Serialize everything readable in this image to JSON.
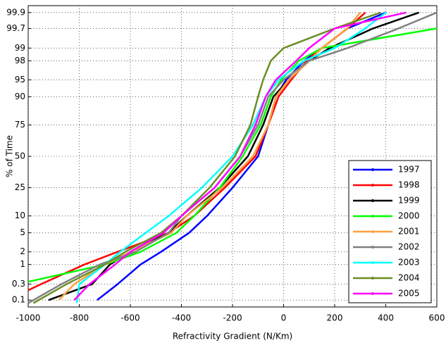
{
  "chart_data": {
    "type": "line",
    "y_scale": "probability",
    "grid": true,
    "legend": "lower right",
    "xlabel": "Refractivity Gradient (N/Km)",
    "ylabel": "% of Time",
    "xlim": [
      -1000,
      600
    ],
    "xticks": [
      -1000,
      -800,
      -600,
      -400,
      -200,
      0,
      200,
      400,
      600
    ],
    "ylim": [
      0.06,
      99.94
    ],
    "yticks": [
      0.1,
      0.3,
      1,
      2,
      5,
      10,
      25,
      50,
      75,
      90,
      95,
      98,
      99,
      99.7,
      99.9
    ],
    "series": [
      {
        "name": "1997",
        "color": "#0000ff",
        "x": [
          -730,
          -650,
          -560,
          -480,
          -370,
          -300,
          -200,
          -100,
          -60,
          -30,
          10,
          80,
          150,
          250,
          400
        ],
        "y": [
          0.1,
          0.3,
          1,
          2,
          5,
          10,
          25,
          50,
          75,
          90,
          95,
          98,
          99,
          99.7,
          99.9
        ]
      },
      {
        "name": "1998",
        "color": "#ff0000",
        "x": [
          -1000,
          -950,
          -780,
          -650,
          -450,
          -350,
          -230,
          -110,
          -60,
          -20,
          30,
          90,
          150,
          250,
          320
        ],
        "y": [
          0.2,
          0.3,
          1,
          2,
          5,
          10,
          25,
          50,
          75,
          90,
          95,
          98,
          99,
          99.7,
          99.9
        ]
      },
      {
        "name": "1999",
        "color": "#000000",
        "x": [
          -920,
          -750,
          -680,
          -600,
          -450,
          -380,
          -250,
          -140,
          -80,
          -40,
          20,
          100,
          180,
          350,
          530
        ],
        "y": [
          0.1,
          0.3,
          1,
          2,
          5,
          10,
          25,
          50,
          75,
          90,
          95,
          98,
          99,
          99.7,
          99.9
        ]
      },
      {
        "name": "2000",
        "color": "#00ff00",
        "x": [
          -1000,
          -700,
          -560,
          -420,
          -350,
          -250,
          -160,
          -90,
          -50,
          -10,
          60,
          150,
          600
        ],
        "y": [
          0.35,
          1,
          2,
          5,
          10,
          25,
          50,
          75,
          90,
          95,
          98,
          99,
          99.7
        ]
      },
      {
        "name": "2001",
        "color": "#ffa040",
        "x": [
          -880,
          -820,
          -700,
          -600,
          -440,
          -380,
          -240,
          -120,
          -60,
          -30,
          20,
          100,
          150,
          250,
          300
        ],
        "y": [
          0.1,
          0.3,
          1,
          2,
          5,
          10,
          25,
          50,
          75,
          90,
          95,
          98,
          99,
          99.7,
          99.9
        ]
      },
      {
        "name": "2002",
        "color": "#808080",
        "x": [
          -1000,
          -870,
          -720,
          -580,
          -450,
          -400,
          -270,
          -170,
          -100,
          -60,
          0,
          100,
          250,
          450,
          600
        ],
        "y": [
          0.08,
          0.3,
          1,
          2,
          5,
          10,
          25,
          50,
          75,
          90,
          95,
          98,
          99,
          99.7,
          99.9
        ]
      },
      {
        "name": "2003",
        "color": "#00ffff",
        "x": [
          -810,
          -800,
          -700,
          -640,
          -540,
          -450,
          -320,
          -200,
          -120,
          -70,
          -20,
          80,
          200,
          320,
          400
        ],
        "y": [
          0.08,
          0.3,
          1,
          2,
          5,
          10,
          25,
          50,
          75,
          90,
          95,
          98,
          99,
          99.7,
          99.9
        ]
      },
      {
        "name": "2004",
        "color": "#6b8e23",
        "x": [
          -980,
          -850,
          -700,
          -620,
          -480,
          -400,
          -290,
          -190,
          -130,
          -100,
          -80,
          -50,
          0,
          200,
          380
        ],
        "y": [
          0.08,
          0.3,
          1,
          2,
          5,
          10,
          25,
          50,
          75,
          90,
          95,
          98,
          99,
          99.7,
          99.9
        ]
      },
      {
        "name": "2005",
        "color": "#ff00ff",
        "x": [
          -820,
          -760,
          -660,
          -600,
          -470,
          -400,
          -270,
          -170,
          -110,
          -70,
          -30,
          50,
          100,
          200,
          480
        ],
        "y": [
          0.1,
          0.3,
          1,
          2,
          5,
          10,
          25,
          50,
          75,
          90,
          95,
          98,
          99,
          99.7,
          99.9
        ]
      }
    ]
  }
}
